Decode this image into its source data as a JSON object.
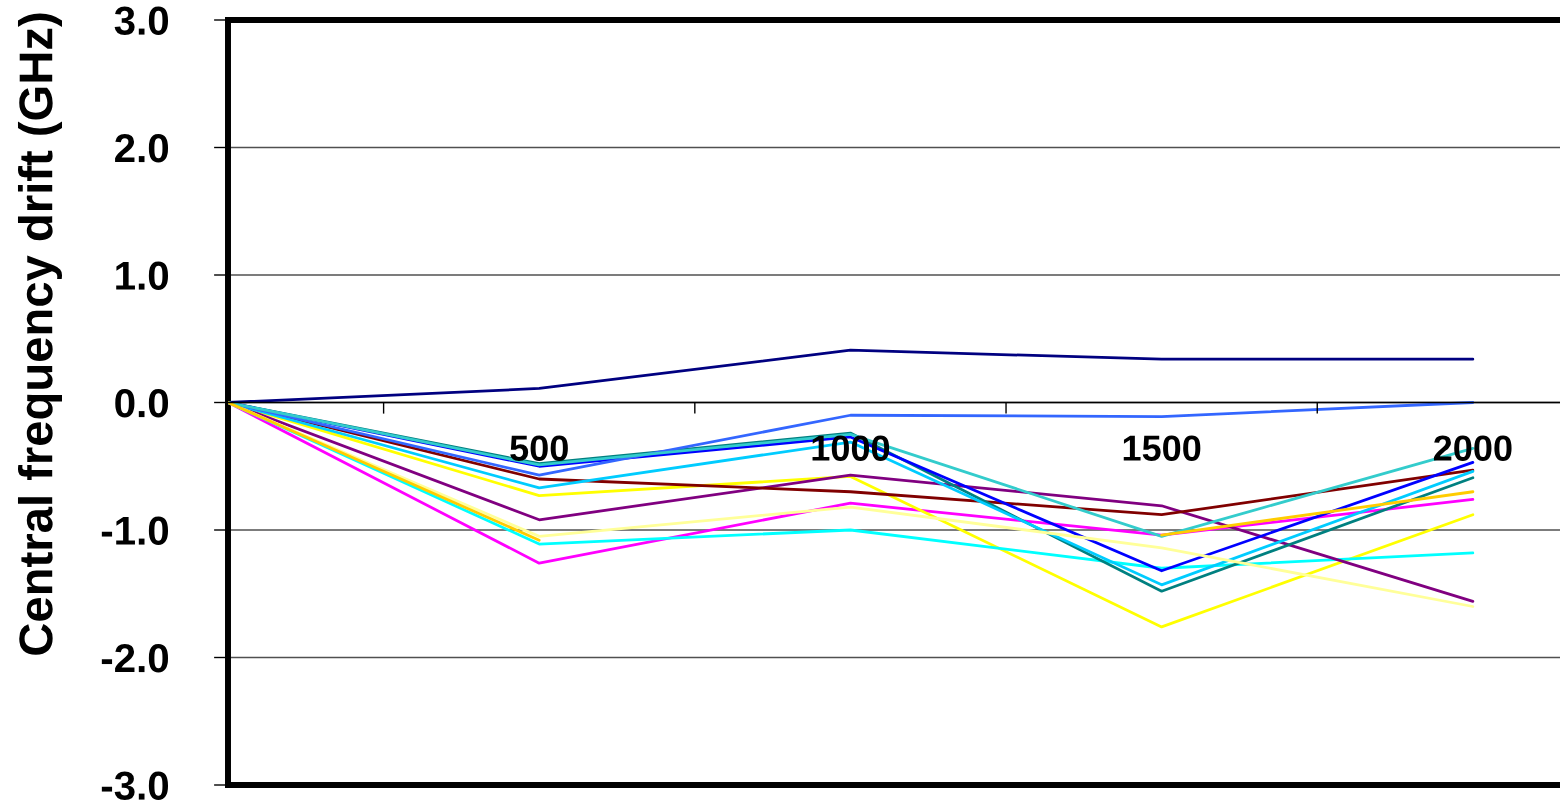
{
  "chart_data": {
    "type": "line",
    "ylabel": "Central frequency drift (GHz)",
    "categories": [
      null,
      "500",
      "1000",
      "1500",
      "2000"
    ],
    "ylim": [
      -3,
      3
    ],
    "yticks": [
      {
        "value": -3,
        "label": "-3.0"
      },
      {
        "value": -2,
        "label": "-2.0"
      },
      {
        "value": -1,
        "label": "-1.0"
      },
      {
        "value": 0,
        "label": "0.0"
      },
      {
        "value": 1,
        "label": "1.0"
      },
      {
        "value": 2,
        "label": "2.0"
      },
      {
        "value": 3,
        "label": "3.0"
      }
    ],
    "grid": "y",
    "marker": "none",
    "line_style": "solid",
    "series": [
      {
        "color": "#000080",
        "values": [
          0,
          0.11,
          0.41,
          0.34,
          0.34
        ]
      },
      {
        "color": "#ff00ff",
        "values": [
          0,
          -1.26,
          -0.79,
          -1.04,
          -0.76
        ]
      },
      {
        "color": "#ffff00",
        "values": [
          0,
          -0.73,
          -0.58,
          -1.76,
          -0.88
        ]
      },
      {
        "color": "#00ffff",
        "values": [
          0,
          -1.11,
          -1.0,
          -1.3,
          -1.18
        ]
      },
      {
        "color": "#800080",
        "values": [
          0,
          -0.92,
          -0.57,
          -0.81,
          -1.56
        ]
      },
      {
        "color": "#800000",
        "values": [
          0,
          -0.6,
          -0.7,
          -0.88,
          -0.53
        ]
      },
      {
        "color": "#008080",
        "values": [
          0,
          -0.48,
          -0.24,
          -1.48,
          -0.59
        ]
      },
      {
        "color": "#0000ff",
        "values": [
          0,
          -0.5,
          -0.27,
          -1.32,
          -0.47
        ]
      },
      {
        "color": "#00ccff",
        "values": [
          0,
          -0.67,
          -0.31,
          -1.43,
          -0.54
        ]
      },
      {
        "color": "#ffff99",
        "values": [
          0,
          -1.05,
          -0.82,
          -1.14,
          -1.6
        ]
      },
      {
        "color": "#3366ff",
        "values": [
          0,
          -0.57,
          -0.1,
          -0.11,
          0.0
        ]
      },
      {
        "color": "#33cccc",
        "values": [
          0,
          -0.49,
          -0.25,
          -1.05,
          -0.36
        ]
      },
      {
        "color": "#ffcc00",
        "values": [
          0,
          -1.08,
          null,
          -1.04,
          -0.7
        ]
      }
    ]
  }
}
